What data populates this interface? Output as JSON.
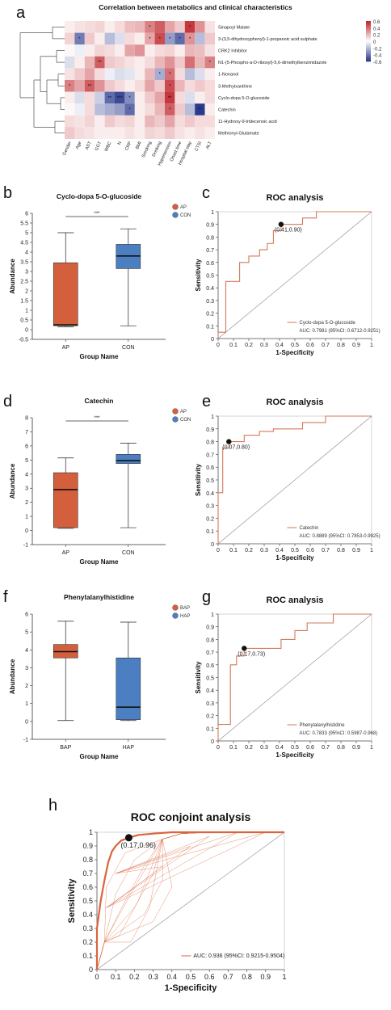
{
  "chart_data": [
    {
      "panel": "a",
      "type": "heatmap",
      "title": "Correlation between metabolics and clinical characteristics",
      "columns": [
        "Gender",
        "Age",
        "AST",
        "GGT",
        "WBC",
        "N",
        "CRP",
        "BMI",
        "Smoking",
        "Drinking",
        "Hypertension",
        "Onset time",
        "Hospital stay",
        "CTSI",
        "ALT"
      ],
      "rows": [
        "Sinapoyl Malate",
        "3-(3,5-dihydroxyphenyl)-1-propanoic acid sulphate",
        "CRK2 Inhibitor",
        "N1-(5-Phospho-a-D-ribosyl)-5,6-dimethylbenzimidazole",
        "1-Nonanol",
        "3-Methylxanthine",
        "Cyclo-dopa 5-O-glucoside",
        "Catechin",
        "11-Hydroxy-9-tridecenoic acid",
        "Methionyl-Glutamate"
      ],
      "values": [
        [
          0.05,
          0.08,
          0.1,
          0.12,
          0.05,
          0.1,
          0.18,
          0.2,
          0.35,
          0.45,
          0.25,
          0.15,
          0.55,
          0.3,
          0.08
        ],
        [
          0.12,
          -0.4,
          0.15,
          0.05,
          -0.2,
          -0.1,
          0.1,
          0.05,
          0.25,
          0.5,
          -0.3,
          -0.45,
          0.3,
          -0.2,
          0.15
        ],
        [
          0.02,
          -0.05,
          0.05,
          0.12,
          0.1,
          0.05,
          0.25,
          0.3,
          0.05,
          0.1,
          0.12,
          0.05,
          0.2,
          0.18,
          0.08
        ],
        [
          -0.1,
          0.05,
          0.2,
          0.45,
          0.15,
          0.12,
          0.08,
          0.05,
          0.1,
          0.2,
          0.3,
          0.15,
          0.4,
          0.2,
          0.35
        ],
        [
          0.08,
          0.15,
          0.25,
          0.1,
          -0.05,
          -0.1,
          -0.08,
          0.05,
          0.2,
          -0.25,
          0.4,
          0.1,
          -0.2,
          -0.1,
          0.05
        ],
        [
          0.35,
          0.25,
          0.45,
          0.3,
          0.15,
          0.1,
          0.05,
          0.1,
          0.25,
          0.15,
          0.5,
          0.2,
          0.1,
          0.15,
          0.1
        ],
        [
          0.05,
          -0.1,
          0.1,
          -0.15,
          -0.45,
          -0.55,
          -0.35,
          0.05,
          0.15,
          0.25,
          0.55,
          0.1,
          -0.1,
          0.05,
          0.1
        ],
        [
          0.02,
          -0.05,
          0.1,
          -0.2,
          -0.25,
          -0.3,
          -0.45,
          0.05,
          0.1,
          0.2,
          0.45,
          0.15,
          -0.2,
          -0.6,
          0.05
        ],
        [
          0.1,
          0.08,
          0.12,
          0.05,
          0.15,
          0.1,
          0.12,
          0.05,
          0.2,
          0.15,
          0.25,
          0.1,
          0.15,
          0.1,
          0.1
        ],
        [
          0.15,
          0.1,
          0.08,
          0.05,
          0.05,
          0.05,
          0.08,
          0.05,
          0.12,
          0.1,
          0.15,
          0.08,
          0.05,
          0.08,
          0.05
        ]
      ],
      "stars": [
        [
          "",
          "",
          "",
          "",
          "",
          "",
          "",
          "",
          "*",
          "",
          "",
          "",
          "*",
          "",
          ""
        ],
        [
          "",
          "*",
          "",
          "",
          "",
          "",
          "",
          "",
          "*",
          "*",
          "*",
          "*",
          "*",
          "",
          ""
        ],
        [
          "",
          "",
          "",
          "",
          "",
          "",
          "",
          "",
          "",
          "",
          "",
          "",
          "",
          "",
          ""
        ],
        [
          "",
          "",
          "",
          "**",
          "",
          "",
          "",
          "",
          "",
          "",
          "",
          "",
          "",
          "",
          "*"
        ],
        [
          "",
          "",
          "",
          "",
          "",
          "",
          "",
          "",
          "",
          "*",
          "*",
          "",
          "",
          "",
          ""
        ],
        [
          "*",
          "",
          "**",
          "",
          "",
          "",
          "",
          "",
          "",
          "",
          "*",
          "",
          "",
          "",
          ""
        ],
        [
          "",
          "",
          "",
          "",
          "**",
          "***",
          "*",
          "",
          "",
          "",
          "**",
          "",
          "",
          "",
          ""
        ],
        [
          "",
          "",
          "",
          "",
          "",
          "",
          "*",
          "",
          "",
          "",
          "*",
          "",
          "",
          "**",
          ""
        ],
        [
          "",
          "",
          "",
          "",
          "",
          "",
          "",
          "",
          "",
          "",
          "",
          "",
          "",
          "",
          ""
        ],
        [
          "",
          "",
          "",
          "",
          "",
          "",
          "",
          "",
          "",
          "",
          "",
          "",
          "",
          "",
          ""
        ]
      ],
      "legend_ticks": [
        "0.6",
        "0.4",
        "0.2",
        "0",
        "-0.2",
        "-0.4",
        "-0.6"
      ]
    },
    {
      "panel": "b",
      "type": "box",
      "title": "Cyclo-dopa 5-O-glucoside",
      "categories": [
        "AP",
        "CON"
      ],
      "colors": [
        "#d35f3c",
        "#4b7fc1"
      ],
      "boxes": [
        {
          "min": 0.15,
          "q1": 0.2,
          "median": 0.25,
          "q3": 3.45,
          "max": 5.0
        },
        {
          "min": 0.2,
          "q1": 3.15,
          "median": 3.8,
          "q3": 4.4,
          "max": 5.2
        }
      ],
      "ylim": [
        -0.5,
        6
      ],
      "yticks": [
        -0.5,
        0,
        0.5,
        1,
        1.5,
        2,
        2.5,
        3,
        3.5,
        4,
        4.5,
        5,
        5.5,
        6
      ],
      "significance": "***",
      "legend": [
        "AP",
        "CON"
      ],
      "xlabel": "Group Name",
      "ylabel": "Abundance"
    },
    {
      "panel": "c",
      "type": "line",
      "title": "ROC analysis",
      "xlabel": "1-Specificity",
      "ylabel": "Sensitivity",
      "roc": [
        [
          0,
          0
        ],
        [
          0,
          0.05
        ],
        [
          0.05,
          0.05
        ],
        [
          0.05,
          0.45
        ],
        [
          0.14,
          0.45
        ],
        [
          0.14,
          0.6
        ],
        [
          0.2,
          0.6
        ],
        [
          0.2,
          0.65
        ],
        [
          0.27,
          0.65
        ],
        [
          0.27,
          0.7
        ],
        [
          0.32,
          0.7
        ],
        [
          0.32,
          0.75
        ],
        [
          0.36,
          0.75
        ],
        [
          0.36,
          0.85
        ],
        [
          0.41,
          0.85
        ],
        [
          0.41,
          0.9
        ],
        [
          0.55,
          0.9
        ],
        [
          0.55,
          0.95
        ],
        [
          0.64,
          0.95
        ],
        [
          0.64,
          1
        ],
        [
          1,
          1
        ]
      ],
      "best_point": [
        0.41,
        0.9
      ],
      "best_label": "(0.41,0.90)",
      "legend": "Cyclo-dopa 5-O-glucoside",
      "auc_text": "AUC: 0.7981 (95%CI: 0.6712-0.9251)"
    },
    {
      "panel": "d",
      "type": "box",
      "title": "Catechin",
      "categories": [
        "AP",
        "CON"
      ],
      "colors": [
        "#d35f3c",
        "#4b7fc1"
      ],
      "boxes": [
        {
          "min": 0.15,
          "q1": 0.2,
          "median": 2.9,
          "q3": 4.1,
          "max": 5.15
        },
        {
          "min": 0.2,
          "q1": 4.75,
          "median": 4.95,
          "q3": 5.4,
          "max": 6.2
        }
      ],
      "ylim": [
        -1,
        8
      ],
      "yticks": [
        -1,
        0,
        1,
        2,
        3,
        4,
        5,
        6,
        7,
        8
      ],
      "significance": "***",
      "legend": [
        "AP",
        "CON"
      ],
      "xlabel": "Group Name",
      "ylabel": "Abundance"
    },
    {
      "panel": "e",
      "type": "line",
      "title": "ROC analysis",
      "xlabel": "1-Specificity",
      "ylabel": "Sensitivity",
      "roc": [
        [
          0,
          0
        ],
        [
          0,
          0.4
        ],
        [
          0.03,
          0.4
        ],
        [
          0.03,
          0.75
        ],
        [
          0.07,
          0.75
        ],
        [
          0.07,
          0.8
        ],
        [
          0.17,
          0.8
        ],
        [
          0.17,
          0.85
        ],
        [
          0.27,
          0.85
        ],
        [
          0.27,
          0.88
        ],
        [
          0.36,
          0.88
        ],
        [
          0.36,
          0.9
        ],
        [
          0.55,
          0.9
        ],
        [
          0.55,
          0.95
        ],
        [
          0.7,
          0.95
        ],
        [
          0.7,
          1
        ],
        [
          1,
          1
        ]
      ],
      "best_point": [
        0.07,
        0.8
      ],
      "best_label": "(0.07,0.80)",
      "legend": "Catechin",
      "auc_text": "AUC: 0.8889 (95%CI: 0.7853-0.9925)"
    },
    {
      "panel": "f",
      "type": "box",
      "title": "Phenylalanylhistidine",
      "categories": [
        "BAP",
        "HAP"
      ],
      "colors": [
        "#d35f3c",
        "#4b7fc1"
      ],
      "boxes": [
        {
          "min": 0.05,
          "q1": 3.55,
          "median": 3.9,
          "q3": 4.3,
          "max": 5.6
        },
        {
          "min": 0.05,
          "q1": 0.1,
          "median": 0.8,
          "q3": 3.55,
          "max": 5.55
        }
      ],
      "ylim": [
        -1,
        6
      ],
      "yticks": [
        -1,
        0,
        1,
        2,
        3,
        4,
        5,
        6
      ],
      "significance": "",
      "legend": [
        "BAP",
        "HAP"
      ],
      "xlabel": "Group Name",
      "ylabel": "Abundance"
    },
    {
      "panel": "g",
      "type": "line",
      "title": "ROC analysis",
      "xlabel": "1-Specificity",
      "ylabel": "Sensitivity",
      "roc": [
        [
          0,
          0
        ],
        [
          0,
          0.13
        ],
        [
          0.08,
          0.13
        ],
        [
          0.08,
          0.6
        ],
        [
          0.12,
          0.6
        ],
        [
          0.12,
          0.67
        ],
        [
          0.17,
          0.67
        ],
        [
          0.17,
          0.73
        ],
        [
          0.41,
          0.73
        ],
        [
          0.41,
          0.8
        ],
        [
          0.5,
          0.8
        ],
        [
          0.5,
          0.87
        ],
        [
          0.58,
          0.87
        ],
        [
          0.58,
          0.93
        ],
        [
          0.75,
          0.93
        ],
        [
          0.75,
          1
        ],
        [
          1,
          1
        ]
      ],
      "best_point": [
        0.17,
        0.73
      ],
      "best_label": "(0.17,0.73)",
      "legend": "Phenylalanylhistidine",
      "auc_text": "AUC: 0.7833 (95%CI: 0.5987-0.968)"
    },
    {
      "panel": "h",
      "type": "line",
      "title": "ROC conjoint analysis",
      "xlabel": "1-Specificity",
      "ylabel": "Sensitivity",
      "roc": [
        [
          0,
          0
        ],
        [
          0,
          0.3
        ],
        [
          0.02,
          0.5
        ],
        [
          0.04,
          0.65
        ],
        [
          0.06,
          0.78
        ],
        [
          0.08,
          0.86
        ],
        [
          0.1,
          0.9
        ],
        [
          0.13,
          0.94
        ],
        [
          0.17,
          0.96
        ],
        [
          0.22,
          0.98
        ],
        [
          0.3,
          0.99
        ],
        [
          0.4,
          1
        ],
        [
          1,
          1
        ]
      ],
      "best_point": [
        0.17,
        0.96
      ],
      "best_label": "(0.17,0.96)",
      "auc_text": "AUC: 0.936 (95%CI: 0.9215-0.9504)"
    }
  ],
  "panel_letters": [
    "a",
    "b",
    "c",
    "d",
    "e",
    "f",
    "g",
    "h"
  ],
  "colors": {
    "roc_line": "#d4795a",
    "conjoint_line": "#d9653c",
    "heat_pos": "#c0272d",
    "heat_neg": "#2b3a8f"
  }
}
